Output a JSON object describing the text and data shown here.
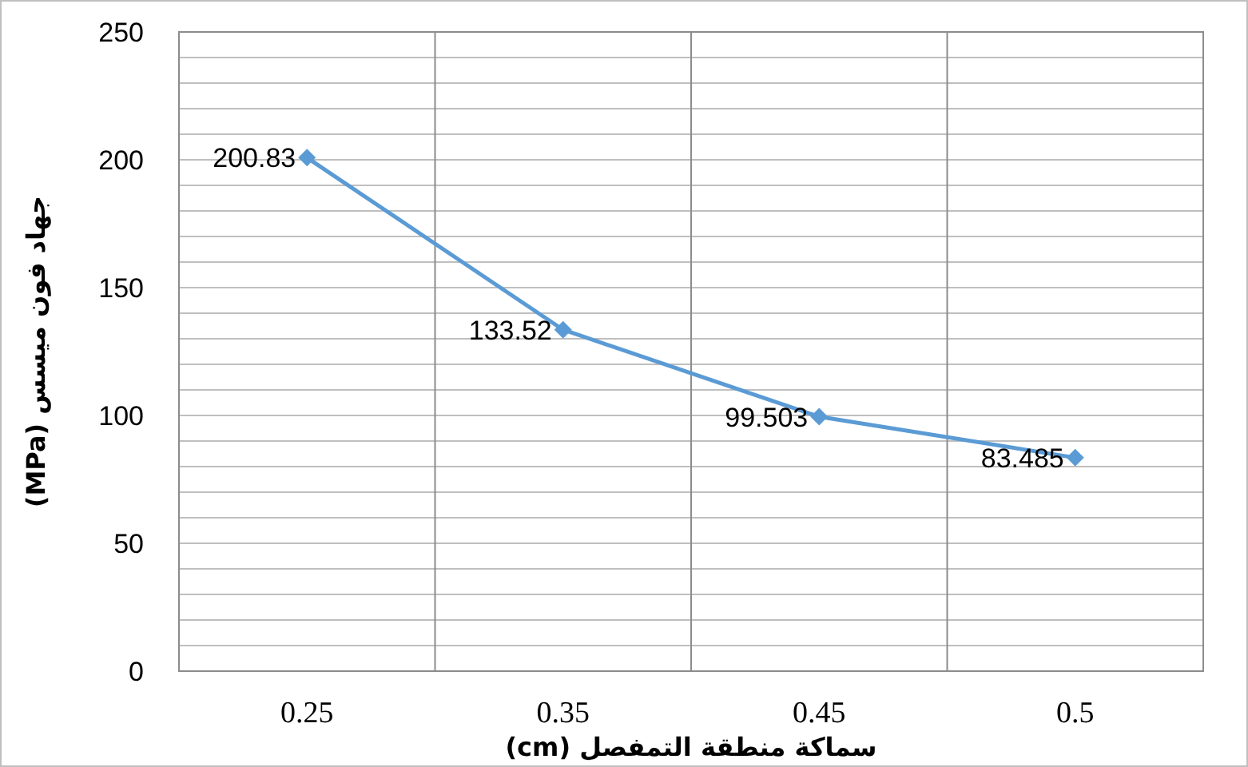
{
  "chart_data": {
    "type": "line",
    "xlabel": "سماكة منطقة التمفصل (cm)",
    "ylabel": "جهاد فون ميسس (MPa)",
    "categories": [
      "0.25",
      "0.35",
      "0.45",
      "0.5"
    ],
    "series": [
      {
        "color": "#5b9bd5",
        "values": [
          200.83,
          133.52,
          99.503,
          83.485
        ]
      }
    ],
    "ylim": [
      0,
      250
    ],
    "yticks": [
      0,
      50,
      100,
      150,
      200,
      250
    ],
    "grid": true,
    "marker": "diamond",
    "line_style": "solid",
    "data_labels": true
  }
}
